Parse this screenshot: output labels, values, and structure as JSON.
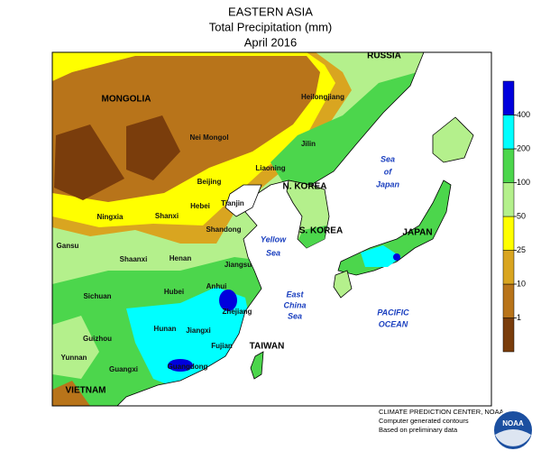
{
  "header": {
    "title": "EASTERN ASIA",
    "subtitle": "Total Precipitation (mm)",
    "date": "April 2016"
  },
  "map_labels": [
    "RUSSIA",
    "MONGOLIA",
    "Nei Mongol",
    "Heilongjiang",
    "Jilin",
    "Liaoning",
    "Beijing",
    "Tianjin",
    "Hebei",
    "Shanxi",
    "Ningxia",
    "Shandong",
    "Gansu",
    "Shaanxi",
    "Henan",
    "Jiangsu",
    "Sichuan",
    "Hubei",
    "Anhui",
    "Zhejiang",
    "Hunan",
    "Jiangxi",
    "Fujian",
    "Guizhou",
    "Yunnan",
    "Guangxi",
    "Guangdong",
    "VIETNAM",
    "N. KOREA",
    "S. KOREA",
    "JAPAN",
    "TAIWAN",
    "Sea",
    "of",
    "Japan",
    "Yellow",
    "Sea",
    "East",
    "China",
    "Sea",
    "PACIFIC",
    "OCEAN"
  ],
  "legend": {
    "ticks": [
      1,
      10,
      25,
      50,
      100,
      200,
      400
    ],
    "colors": [
      "#7a3d0c",
      "#b8741a",
      "#d9a520",
      "#ffff00",
      "#b4f08c",
      "#4cd64c",
      "#00ffff",
      "#0000dd"
    ]
  },
  "credits": [
    "CLIMATE PREDICTION CENTER, NOAA",
    "Computer generated contours",
    "Based on preliminary data"
  ],
  "logo": "NOAA"
}
